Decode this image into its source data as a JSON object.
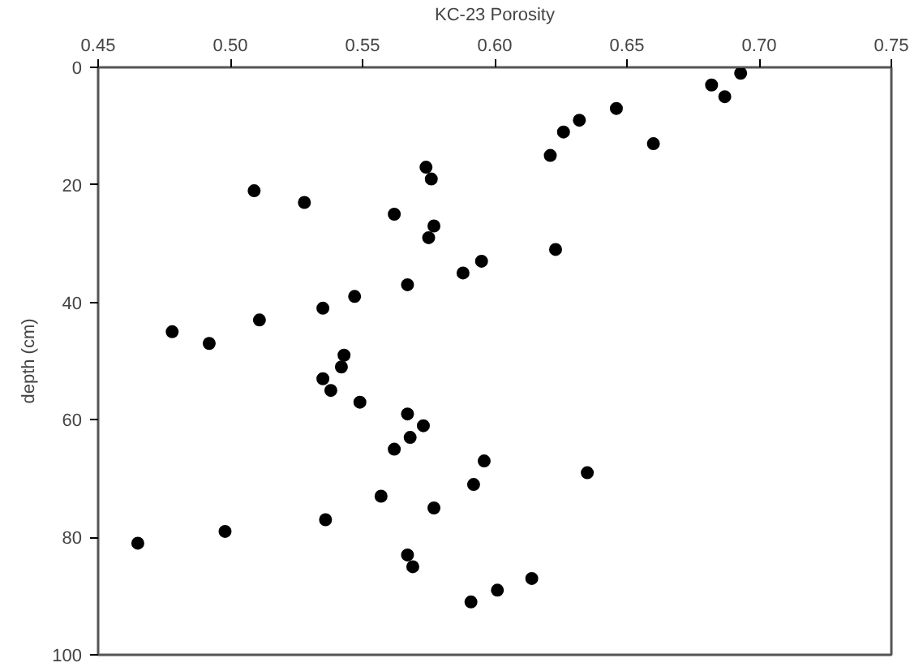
{
  "chart_data": {
    "type": "scatter",
    "xlabel": "KC-23 Porosity",
    "ylabel": "depth (cm)",
    "x": [
      0.693,
      0.682,
      0.687,
      0.646,
      0.632,
      0.626,
      0.66,
      0.621,
      0.574,
      0.576,
      0.509,
      0.528,
      0.562,
      0.577,
      0.575,
      0.623,
      0.595,
      0.588,
      0.567,
      0.547,
      0.535,
      0.511,
      0.478,
      0.492,
      0.543,
      0.542,
      0.535,
      0.538,
      0.549,
      0.567,
      0.573,
      0.568,
      0.562,
      0.596,
      0.635,
      0.592,
      0.557,
      0.577,
      0.536,
      0.498,
      0.465,
      0.567,
      0.569,
      0.614,
      0.601,
      0.591
    ],
    "values": [
      1,
      3,
      5,
      7,
      9,
      11,
      13,
      15,
      17,
      19,
      21,
      23,
      25,
      27,
      29,
      31,
      33,
      35,
      37,
      39,
      41,
      43,
      45,
      47,
      49,
      51,
      53,
      55,
      57,
      59,
      61,
      63,
      65,
      67,
      69,
      71,
      73,
      75,
      77,
      79,
      81,
      83,
      85,
      87,
      89,
      91
    ],
    "color": "#000000",
    "marker": "circle",
    "grid": false,
    "xlim": [
      0.45,
      0.75
    ],
    "ylim": [
      100,
      0
    ],
    "xticks": [
      {
        "value": 0.45,
        "label": "0.45"
      },
      {
        "value": 0.5,
        "label": "0.50"
      },
      {
        "value": 0.55,
        "label": "0.55"
      },
      {
        "value": 0.6,
        "label": "0.60"
      },
      {
        "value": 0.65,
        "label": "0.65"
      },
      {
        "value": 0.7,
        "label": "0.70"
      },
      {
        "value": 0.75,
        "label": "0.75"
      }
    ],
    "yticks": [
      0,
      20,
      40,
      60,
      80,
      100
    ]
  }
}
